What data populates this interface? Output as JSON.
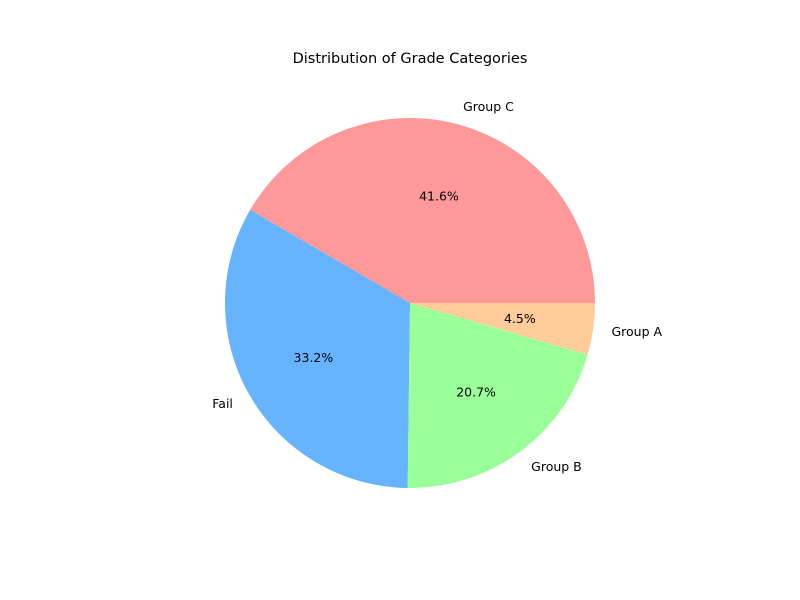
{
  "chart_data": {
    "type": "pie",
    "title": "Distribution of Grade Categories",
    "start_angle_deg": 0,
    "direction": "counterclockwise",
    "slices": [
      {
        "label": "Group C",
        "value": 41.6,
        "pct_label": "41.6%",
        "color": "#ff9999"
      },
      {
        "label": "Fail",
        "value": 33.2,
        "pct_label": "33.2%",
        "color": "#66b3ff"
      },
      {
        "label": "Group B",
        "value": 20.7,
        "pct_label": "20.7%",
        "color": "#99ff99"
      },
      {
        "label": "Group A",
        "value": 4.5,
        "pct_label": "4.5%",
        "color": "#ffcc99"
      }
    ]
  }
}
